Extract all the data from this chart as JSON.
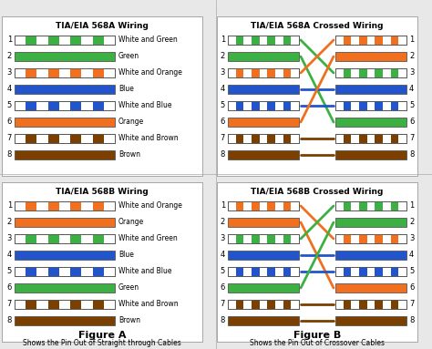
{
  "background_color": "#e8e8e8",
  "title_568A": "TIA/EIA 568A Wiring",
  "title_568B": "TIA/EIA 568B Wiring",
  "title_568A_cross": "TIA/EIA 568A Crossed Wiring",
  "title_568B_cross": "TIA/EIA 568B Crossed Wiring",
  "figure_A": "Figure A",
  "figure_B": "Figure B",
  "caption_A": "Shows the Pin Out of Straight through Cables",
  "caption_B": "Shows the Pin Out of Crossover Cables",
  "568A_wires": [
    {
      "pin": 1,
      "label": "White and Green",
      "solid": false,
      "color": "#3cb043"
    },
    {
      "pin": 2,
      "label": "Green",
      "solid": true,
      "color": "#3cb043"
    },
    {
      "pin": 3,
      "label": "White and Orange",
      "solid": false,
      "color": "#f07020"
    },
    {
      "pin": 4,
      "label": "Blue",
      "solid": true,
      "color": "#2255cc"
    },
    {
      "pin": 5,
      "label": "White and Blue",
      "solid": false,
      "color": "#2255cc"
    },
    {
      "pin": 6,
      "label": "Orange",
      "solid": true,
      "color": "#f07020"
    },
    {
      "pin": 7,
      "label": "White and Brown",
      "solid": false,
      "color": "#7b3f00"
    },
    {
      "pin": 8,
      "label": "Brown",
      "solid": true,
      "color": "#7b3f00"
    }
  ],
  "568B_wires": [
    {
      "pin": 1,
      "label": "White and Orange",
      "solid": false,
      "color": "#f07020"
    },
    {
      "pin": 2,
      "label": "Orange",
      "solid": true,
      "color": "#f07020"
    },
    {
      "pin": 3,
      "label": "White and Green",
      "solid": false,
      "color": "#3cb043"
    },
    {
      "pin": 4,
      "label": "Blue",
      "solid": true,
      "color": "#2255cc"
    },
    {
      "pin": 5,
      "label": "White and Blue",
      "solid": false,
      "color": "#2255cc"
    },
    {
      "pin": 6,
      "label": "Green",
      "solid": true,
      "color": "#3cb043"
    },
    {
      "pin": 7,
      "label": "White and Brown",
      "solid": false,
      "color": "#7b3f00"
    },
    {
      "pin": 8,
      "label": "Brown",
      "solid": true,
      "color": "#7b3f00"
    }
  ],
  "cross_map": [
    3,
    6,
    1,
    4,
    5,
    2,
    7,
    8
  ]
}
